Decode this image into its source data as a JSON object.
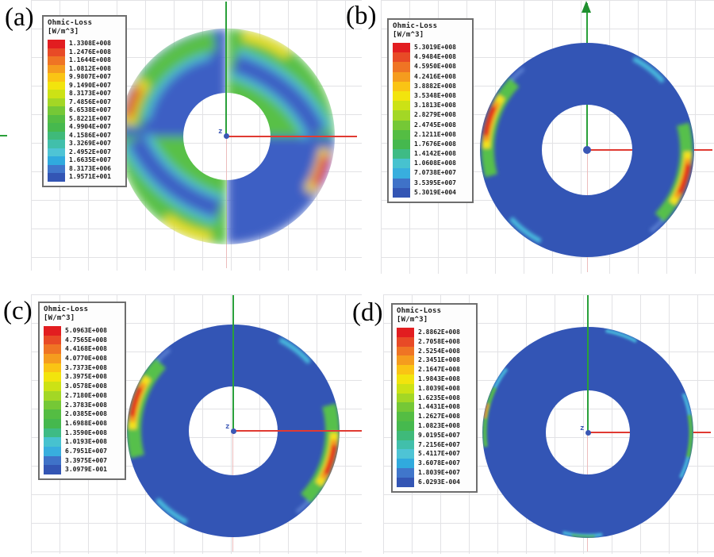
{
  "legend_title": {
    "line1": "Ohmic-Loss",
    "line2": "[W/m^3]"
  },
  "origin_label": "z",
  "panels": {
    "a": {
      "label": "(a)",
      "legend": {
        "values": [
          "1.3308E+008",
          "1.2476E+008",
          "1.1644E+008",
          "1.0812E+008",
          "9.9807E+007",
          "9.1490E+007",
          "8.3173E+007",
          "7.4856E+007",
          "6.6538E+007",
          "5.8221E+007",
          "4.9904E+007",
          "4.1586E+007",
          "3.3269E+007",
          "2.4952E+007",
          "1.6635E+007",
          "8.3173E+006",
          "1.9571E+001"
        ],
        "colors": [
          "#e21d20",
          "#e84a26",
          "#ef7424",
          "#f59c1e",
          "#fac414",
          "#f2e40d",
          "#cce215",
          "#a3d725",
          "#75c836",
          "#54bd43",
          "#46b94e",
          "#3fba7a",
          "#41bfab",
          "#4ec4d5",
          "#30aade",
          "#4076cb",
          "#3355b4"
        ]
      }
    },
    "b": {
      "label": "(b)",
      "legend": {
        "values": [
          "5.3019E+008",
          "4.9484E+008",
          "4.5950E+008",
          "4.2416E+008",
          "3.8882E+008",
          "3.5348E+008",
          "3.1813E+008",
          "2.8279E+008",
          "2.4745E+008",
          "2.1211E+008",
          "1.7676E+008",
          "1.4142E+008",
          "1.0608E+008",
          "7.0738E+007",
          "3.5395E+007",
          "5.3019E+004"
        ],
        "colors": [
          "#e21d20",
          "#e84a26",
          "#ef7424",
          "#f59c1e",
          "#fac414",
          "#f2e40d",
          "#cce215",
          "#a3d725",
          "#75c836",
          "#54bd43",
          "#45b84e",
          "#3ebb85",
          "#47c2cf",
          "#38aede",
          "#3f72c8",
          "#3355b4"
        ]
      }
    },
    "c": {
      "label": "(c)",
      "legend": {
        "values": [
          "5.0963E+008",
          "4.7565E+008",
          "4.4168E+008",
          "4.0770E+008",
          "3.7373E+008",
          "3.3975E+008",
          "3.0578E+008",
          "2.7180E+008",
          "2.3783E+008",
          "2.0385E+008",
          "1.6988E+008",
          "1.3590E+008",
          "1.0193E+008",
          "6.7951E+007",
          "3.3975E+007",
          "3.0979E-001"
        ],
        "colors": [
          "#e21d20",
          "#e84a26",
          "#ef7424",
          "#f59c1e",
          "#fac414",
          "#f2e40d",
          "#cce215",
          "#a3d725",
          "#75c836",
          "#54bd43",
          "#45b84e",
          "#3ebb85",
          "#47c2cf",
          "#38aede",
          "#3f72c8",
          "#3355b4"
        ]
      }
    },
    "d": {
      "label": "(d)",
      "legend": {
        "values": [
          "2.8862E+008",
          "2.7058E+008",
          "2.5254E+008",
          "2.3451E+008",
          "2.1647E+008",
          "1.9843E+008",
          "1.8039E+008",
          "1.6235E+008",
          "1.4431E+008",
          "1.2627E+008",
          "1.0823E+008",
          "9.0195E+007",
          "7.2156E+007",
          "5.4117E+007",
          "3.6078E+007",
          "1.8039E+007",
          "6.0293E-004"
        ],
        "colors": [
          "#e21d20",
          "#e84a26",
          "#ef7424",
          "#f59c1e",
          "#fac414",
          "#f2e40d",
          "#cce215",
          "#a3d725",
          "#75c836",
          "#54bd43",
          "#46b94e",
          "#3fba7a",
          "#41bfab",
          "#4ec4d5",
          "#30aade",
          "#4076cb",
          "#3355b4"
        ]
      }
    }
  },
  "chart_data": [
    {
      "type": "heatmap",
      "panel": "a",
      "title": "Ohmic-Loss",
      "units": "W/m^3",
      "scale_max": 133080000,
      "scale_min": 19.571,
      "scale_values": [
        133080000,
        124760000,
        116440000,
        108120000,
        99807000,
        91490000,
        83173000,
        74856000,
        66538000,
        58221000,
        49904000,
        41586000,
        33269000,
        24952000,
        16635000,
        8317300,
        19.571
      ],
      "pattern": "annulus split vertically; upper-left blue with green outer rim, lower-left green with yellow rim arc; red hotspots on outer rim at upper-left and lower-right; upper-right green with cyan-blue swath and yellow rim arc"
    },
    {
      "type": "heatmap",
      "panel": "b",
      "title": "Ohmic-Loss",
      "units": "W/m^3",
      "scale_max": 530190000,
      "scale_min": 53019,
      "scale_values": [
        530190000,
        494840000,
        459500000,
        424160000,
        388820000,
        353480000,
        318130000,
        282790000,
        247450000,
        212110000,
        176760000,
        141420000,
        106080000,
        70738000,
        35395000,
        53019
      ],
      "pattern": "uniform blue annulus; red/yellow/green hotspots on outer rim upper-left and lower-right; cyan slivers top-right and bottom-left; green y-axis arrow at top"
    },
    {
      "type": "heatmap",
      "panel": "c",
      "title": "Ohmic-Loss",
      "units": "W/m^3",
      "scale_max": 509630000,
      "scale_min": 0.30979,
      "scale_values": [
        509630000,
        475650000,
        441680000,
        407700000,
        373730000,
        339750000,
        305780000,
        271800000,
        237830000,
        203850000,
        169880000,
        135900000,
        101930000,
        67951000,
        33975000,
        0.30979
      ],
      "pattern": "uniform blue annulus; red/yellow/green hotspots on outer rim left and right; cyan slivers top-right and bottom-left"
    },
    {
      "type": "heatmap",
      "panel": "d",
      "title": "Ohmic-Loss",
      "units": "W/m^3",
      "scale_max": 288620000,
      "scale_min": 0.00060293,
      "scale_values": [
        288620000,
        270580000,
        252540000,
        234510000,
        216470000,
        198430000,
        180390000,
        162350000,
        144310000,
        126270000,
        108230000,
        90195000,
        72156000,
        54117000,
        36078000,
        18039000,
        0.00060293
      ],
      "pattern": "almost entirely blue annulus; very thin green/cyan slivers on outer rim left, right, top and bottom"
    }
  ]
}
